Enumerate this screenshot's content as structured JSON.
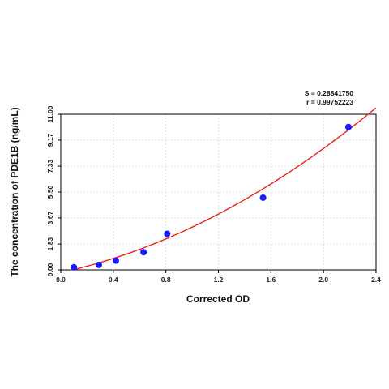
{
  "chart_data": {
    "type": "scatter",
    "xlabel": "Corrected OD",
    "ylabel": "The concentration of PDE1B (ng/mL)",
    "xlim": [
      0.0,
      2.4
    ],
    "ylim": [
      0.0,
      11.0
    ],
    "x_ticks": [
      "0.0",
      "0.4",
      "0.8",
      "1.2",
      "1.6",
      "2.0",
      "2.4"
    ],
    "y_ticks": [
      "0.00",
      "1.83",
      "3.67",
      "5.50",
      "7.33",
      "9.17",
      "11.00"
    ],
    "grid": true,
    "points": [
      {
        "x": 0.1,
        "y": 0.18
      },
      {
        "x": 0.29,
        "y": 0.35
      },
      {
        "x": 0.42,
        "y": 0.65
      },
      {
        "x": 0.63,
        "y": 1.25
      },
      {
        "x": 0.81,
        "y": 2.55
      },
      {
        "x": 1.54,
        "y": 5.1
      },
      {
        "x": 2.19,
        "y": 10.1
      }
    ],
    "fit_curve": {
      "type": "quadratic",
      "coefficients": [
        -0.2,
        2.05,
        1.17
      ],
      "x_range": [
        0.0,
        2.46
      ]
    },
    "stats": [
      "S = 0.28841750",
      "r = 0.99752223"
    ],
    "colors": {
      "points": "#1a1aff",
      "curve": "#e8231a",
      "grid": "#c8c8c8",
      "axis": "#000000"
    }
  }
}
